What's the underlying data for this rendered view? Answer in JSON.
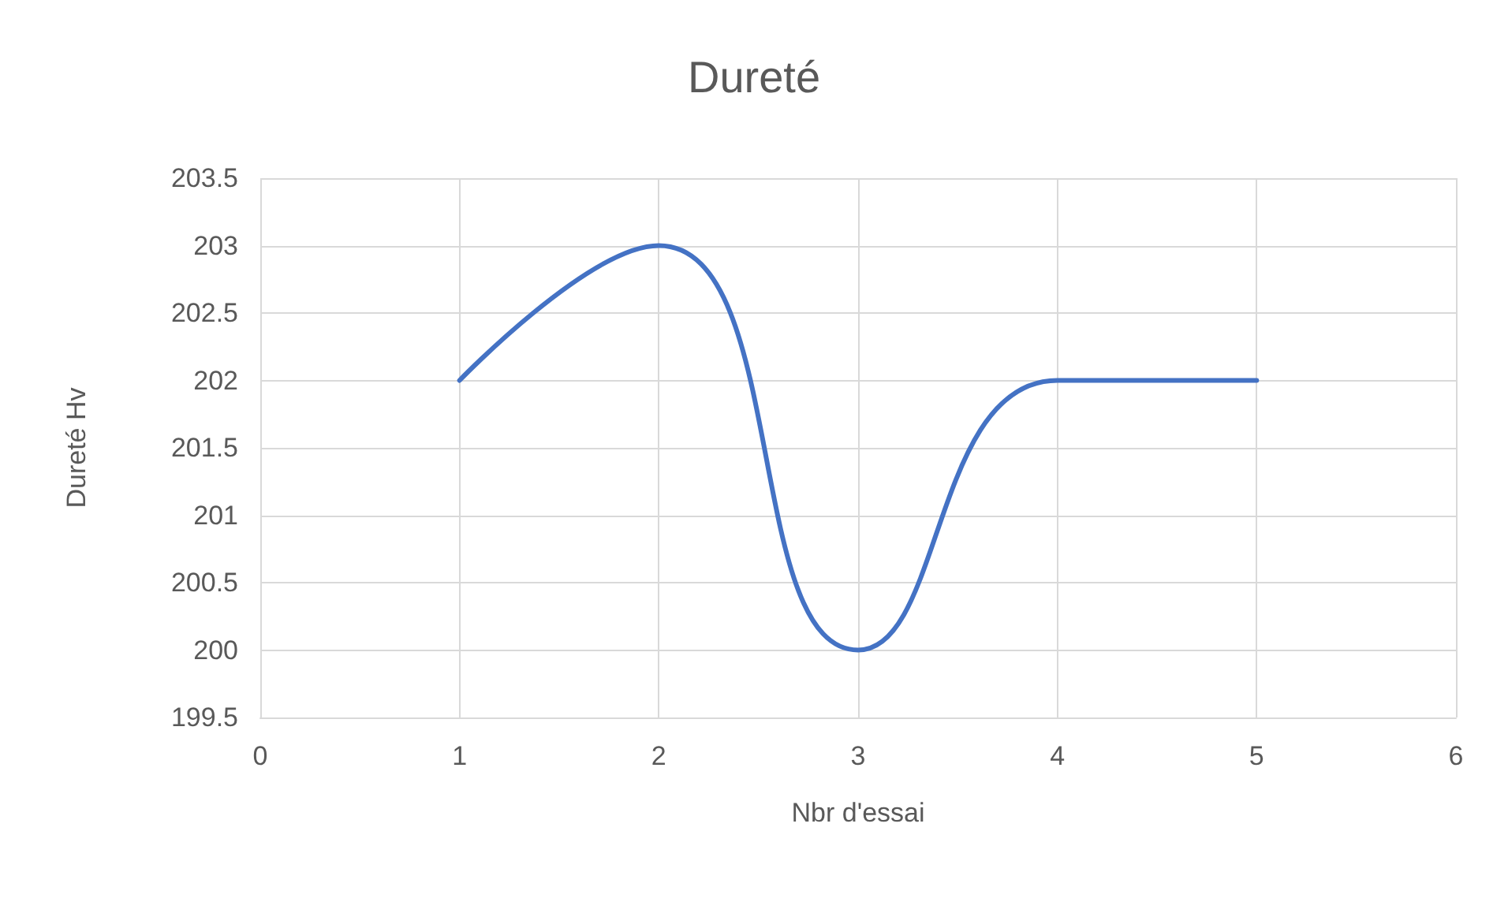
{
  "chart_data": {
    "type": "line",
    "title": "Dureté",
    "xlabel": "Nbr d'essai",
    "ylabel": "Dureté Hv",
    "x": [
      1,
      2,
      3,
      4,
      5
    ],
    "series": [
      {
        "color": "#4472c4",
        "values": [
          202,
          203,
          200,
          202,
          202
        ]
      }
    ],
    "xlim": [
      0,
      6
    ],
    "xticks": [
      0,
      1,
      2,
      3,
      4,
      5,
      6
    ],
    "ylim": [
      199.5,
      203.5
    ],
    "yticks": [
      199.5,
      200,
      200.5,
      201,
      201.5,
      202,
      202.5,
      203,
      203.5
    ],
    "grid": true,
    "marker": "none",
    "line_style": "solid"
  }
}
